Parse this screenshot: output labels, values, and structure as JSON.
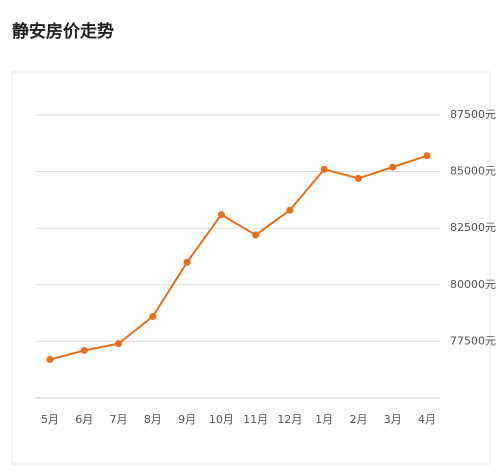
{
  "chart_data": {
    "type": "line",
    "title": "静安房价走势",
    "categories": [
      "5月",
      "6月",
      "7月",
      "8月",
      "9月",
      "10月",
      "11月",
      "12月",
      "1月",
      "2月",
      "3月",
      "4月"
    ],
    "series": [
      {
        "color": "#e8701a",
        "values": [
          76700,
          77100,
          77400,
          78600,
          81000,
          83100,
          82200,
          83300,
          85100,
          84700,
          85200,
          85700
        ]
      }
    ],
    "ylim": [
      75000,
      87500
    ],
    "yticks": [
      {
        "value": 77500,
        "label": "77500元"
      },
      {
        "value": 80000,
        "label": "80000元"
      },
      {
        "value": 82500,
        "label": "82500元"
      },
      {
        "value": 85000,
        "label": "85000元"
      },
      {
        "value": 87500,
        "label": "87500元"
      }
    ],
    "grid": true
  }
}
